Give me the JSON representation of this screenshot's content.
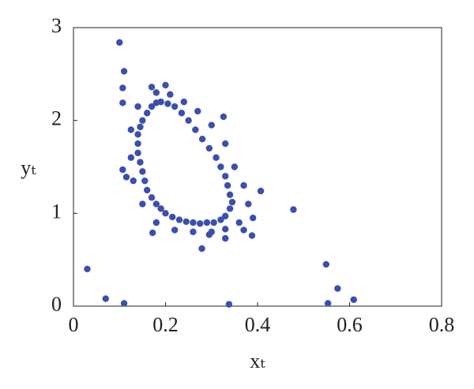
{
  "chart_data": {
    "type": "scatter",
    "xlabel": "xₜ",
    "ylabel": "yₜ",
    "color": "#3b4fae",
    "xlim": [
      0,
      0.8
    ],
    "ylim": [
      0,
      3
    ],
    "xticks": [
      0,
      0.2,
      0.4,
      0.6,
      0.8
    ],
    "yticks": [
      0,
      1,
      2,
      3
    ],
    "x": [
      0.03,
      0.07,
      0.11,
      0.338,
      0.1,
      0.11,
      0.107,
      0.107,
      0.107,
      0.115,
      0.326,
      0.407,
      0.478,
      0.549,
      0.574,
      0.553,
      0.609,
      0.279,
      0.388,
      0.172,
      0.295,
      0.33,
      0.19,
      0.22,
      0.25,
      0.28,
      0.31,
      0.33,
      0.34,
      0.34,
      0.32,
      0.29,
      0.26,
      0.23,
      0.2,
      0.18,
      0.16,
      0.15,
      0.14,
      0.14,
      0.15,
      0.17,
      0.205,
      0.235,
      0.265,
      0.295,
      0.32,
      0.335,
      0.345,
      0.33,
      0.305,
      0.275,
      0.245,
      0.215,
      0.19,
      0.17,
      0.155,
      0.145,
      0.14,
      0.145,
      0.16,
      0.18,
      0.18,
      0.21,
      0.24,
      0.27,
      0.3,
      0.33,
      0.35,
      0.37,
      0.38,
      0.36,
      0.33,
      0.3,
      0.26,
      0.22,
      0.18,
      0.15,
      0.13,
      0.125,
      0.125,
      0.14,
      0.2,
      0.17,
      0.39,
      0.37
    ],
    "y": [
      0.4,
      0.08,
      0.03,
      0.02,
      2.84,
      2.53,
      2.35,
      2.19,
      1.47,
      1.39,
      2.04,
      1.24,
      1.04,
      0.45,
      0.19,
      0.03,
      0.07,
      0.62,
      0.76,
      0.79,
      0.77,
      0.73,
      2.2,
      2.15,
      2.0,
      1.8,
      1.6,
      1.4,
      1.2,
      1.05,
      0.93,
      0.9,
      0.9,
      0.93,
      1.0,
      1.1,
      1.25,
      1.45,
      1.65,
      1.85,
      2.0,
      2.15,
      2.18,
      2.08,
      1.9,
      1.7,
      1.5,
      1.3,
      1.12,
      0.97,
      0.9,
      0.89,
      0.91,
      0.96,
      1.05,
      1.17,
      1.35,
      1.55,
      1.75,
      1.93,
      2.08,
      2.19,
      2.3,
      2.28,
      2.2,
      2.1,
      1.95,
      1.75,
      1.5,
      1.3,
      1.1,
      0.9,
      0.83,
      0.8,
      0.8,
      0.82,
      0.9,
      1.1,
      1.35,
      1.6,
      1.9,
      2.15,
      2.38,
      2.36,
      0.95,
      0.82
    ]
  }
}
